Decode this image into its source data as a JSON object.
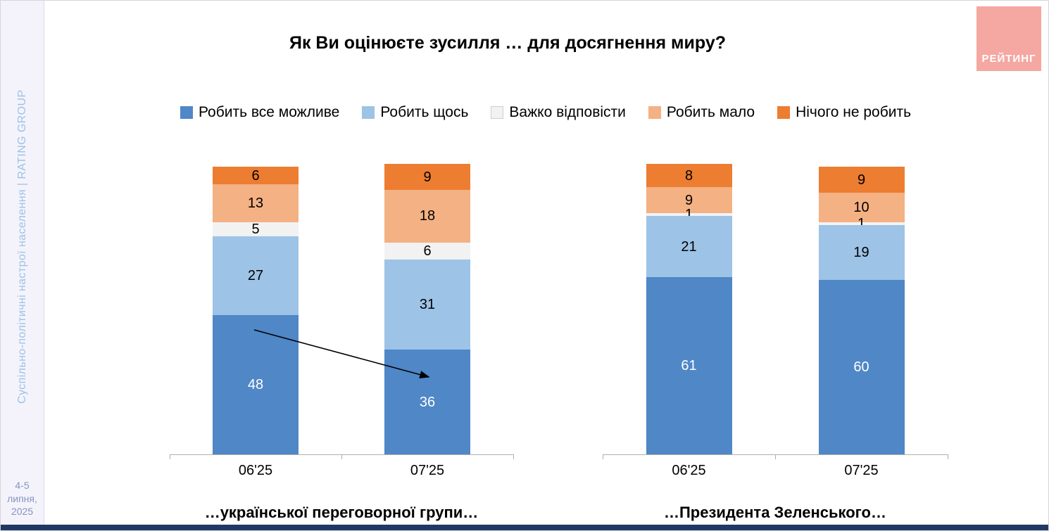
{
  "title": "Як Ви оцінюєте зусилля … для досягнення миру?",
  "sidebar": {
    "vertical_text": "Суспільно-політичні настрої населення |  RATING GROUP",
    "date_line1": "4-5 липня,",
    "date_line2": "2025"
  },
  "logo": {
    "text": "РЕЙТИНГ",
    "bg_color": "#f5a7a1"
  },
  "legend": [
    {
      "label": "Робить все можливе",
      "color": "#4f87c7"
    },
    {
      "label": "Робить щось",
      "color": "#9dc3e6"
    },
    {
      "label": "Важко відповісти",
      "color": "#f2f2f2"
    },
    {
      "label": "Робить мало",
      "color": "#f4b183"
    },
    {
      "label": "Нічого не робить",
      "color": "#ed7d31"
    }
  ],
  "chart_data": {
    "type": "bar",
    "stacked": true,
    "title": "Як Ви оцінюєте зусилля … для досягнення миру?",
    "ylim": [
      0,
      100
    ],
    "legend_position": "top",
    "grid": false,
    "groups": [
      {
        "title": "…української переговорної групи…",
        "categories": [
          "06'25",
          "07'25"
        ],
        "series": [
          {
            "name": "Робить все можливе",
            "values": [
              48,
              36
            ]
          },
          {
            "name": "Робить щось",
            "values": [
              27,
              31
            ]
          },
          {
            "name": "Важко відповісти",
            "values": [
              5,
              6
            ]
          },
          {
            "name": "Робить мало",
            "values": [
              13,
              18
            ]
          },
          {
            "name": "Нічого не робить",
            "values": [
              6,
              9
            ]
          }
        ]
      },
      {
        "title": "…Президента Зеленського…",
        "categories": [
          "06'25",
          "07'25"
        ],
        "series": [
          {
            "name": "Робить все можливе",
            "values": [
              61,
              60
            ]
          },
          {
            "name": "Робить щось",
            "values": [
              21,
              19
            ]
          },
          {
            "name": "Важко відповісти",
            "values": [
              1,
              1
            ]
          },
          {
            "name": "Робить мало",
            "values": [
              9,
              10
            ]
          },
          {
            "name": "Нічого не робить",
            "values": [
              8,
              9
            ]
          }
        ]
      }
    ],
    "annotations": [
      {
        "type": "arrow",
        "note": "decline from 48 (06'25) to 36 (07'25) in left chart"
      }
    ]
  }
}
